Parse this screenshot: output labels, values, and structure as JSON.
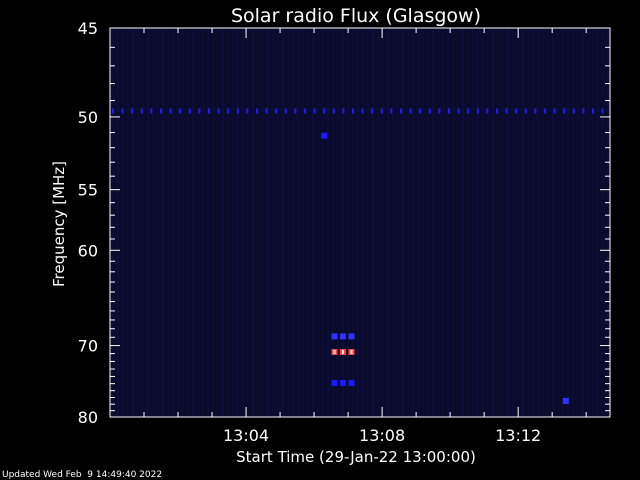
{
  "chart_data": {
    "type": "heatmap",
    "title": "Solar radio Flux (Glasgow)",
    "xlabel": "Start Time (29-Jan-22 13:00:00)",
    "ylabel": "Frequency [MHz]",
    "footer": "Updated Wed Feb  9 14:49:40 2022",
    "x_ticks": [
      "13:04",
      "13:08",
      "13:12"
    ],
    "x_tick_minutes": [
      4,
      8,
      12
    ],
    "xlim_minutes": [
      0,
      14.7
    ],
    "y_ticks": [
      45,
      50,
      55,
      60,
      70,
      80
    ],
    "ylim": [
      45,
      80
    ],
    "y_scale": "reciprocal",
    "background_color": "#0a0a2a",
    "colors": {
      "axis": "#ffffff",
      "weak": "#1a1aff",
      "medium": "#3030ff",
      "hot": "#ff4040",
      "hottest": "#ffe0d0"
    },
    "features": [
      {
        "kind": "band",
        "freq_mhz": 49.6,
        "from_min": 0.0,
        "to_min": 14.7,
        "intensity": "weak"
      },
      {
        "kind": "spot",
        "freq_mhz": 51.2,
        "minute": 6.3,
        "intensity": "weak"
      },
      {
        "kind": "spot",
        "freq_mhz": 68.9,
        "minute": 6.6,
        "intensity": "medium"
      },
      {
        "kind": "spot",
        "freq_mhz": 68.9,
        "minute": 6.85,
        "intensity": "medium"
      },
      {
        "kind": "spot",
        "freq_mhz": 68.9,
        "minute": 7.1,
        "intensity": "medium"
      },
      {
        "kind": "spot",
        "freq_mhz": 70.8,
        "minute": 6.6,
        "intensity": "hot"
      },
      {
        "kind": "spot",
        "freq_mhz": 70.8,
        "minute": 6.85,
        "intensity": "hot"
      },
      {
        "kind": "spot",
        "freq_mhz": 70.8,
        "minute": 7.1,
        "intensity": "hot"
      },
      {
        "kind": "spot",
        "freq_mhz": 74.9,
        "minute": 6.6,
        "intensity": "weak"
      },
      {
        "kind": "spot",
        "freq_mhz": 74.9,
        "minute": 6.85,
        "intensity": "weak"
      },
      {
        "kind": "spot",
        "freq_mhz": 74.9,
        "minute": 7.1,
        "intensity": "weak"
      },
      {
        "kind": "spot",
        "freq_mhz": 77.5,
        "minute": 13.4,
        "intensity": "medium"
      }
    ]
  }
}
